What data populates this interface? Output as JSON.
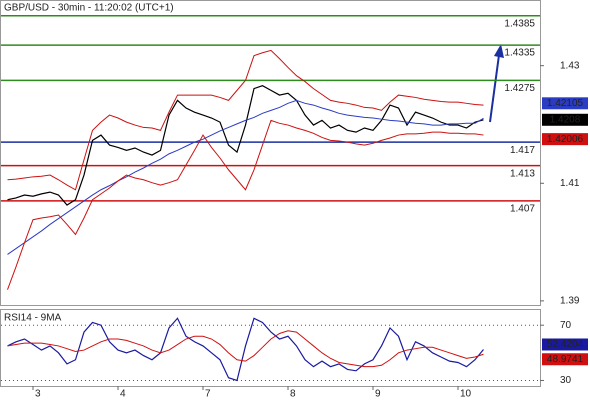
{
  "chart_data": [
    {
      "type": "line",
      "title": "GBP/USD - 30min - 11:20:02 (UTC+1)",
      "categories": [
        null,
        null,
        null,
        "3",
        null,
        null,
        null,
        null,
        null,
        null,
        null,
        null,
        null,
        "4",
        null,
        null,
        null,
        null,
        null,
        null,
        null,
        null,
        null,
        "7",
        null,
        null,
        null,
        null,
        null,
        null,
        null,
        null,
        null,
        "8",
        null,
        null,
        null,
        null,
        null,
        null,
        null,
        null,
        null,
        "9",
        null,
        null,
        null,
        null,
        null,
        null,
        null,
        null,
        null,
        "10",
        null,
        null,
        null
      ],
      "series": [
        {
          "color": "#000000",
          "values": [
            1.4072,
            1.4075,
            1.408,
            1.4078,
            1.4082,
            1.4085,
            1.408,
            1.4063,
            1.4072,
            1.4114,
            1.4173,
            1.4182,
            1.4165,
            1.4161,
            1.4156,
            1.416,
            1.4153,
            1.4148,
            1.4156,
            1.4216,
            1.4241,
            1.4228,
            1.4221,
            1.4216,
            1.4211,
            1.4204,
            1.4165,
            1.4153,
            1.4199,
            1.4261,
            1.4266,
            1.4258,
            1.425,
            1.4253,
            1.4241,
            1.4216,
            1.4199,
            1.4207,
            1.4194,
            1.4199,
            1.419,
            1.4187,
            1.4194,
            1.419,
            1.4207,
            1.4233,
            1.4228,
            1.4199,
            1.4221,
            1.4216,
            1.4211,
            1.4204,
            1.4199,
            1.4199,
            1.4194,
            1.4204,
            1.4208
          ]
        },
        {
          "color": "#2b3cc4",
          "values": [
            1.3979,
            1.3989,
            1.3999,
            1.4009,
            1.4019,
            1.403,
            1.404,
            1.405,
            1.406,
            1.407,
            1.408,
            1.4089,
            1.4096,
            1.4104,
            1.4111,
            1.4119,
            1.4126,
            1.4134,
            1.4141,
            1.415,
            1.4156,
            1.4163,
            1.417,
            1.4175,
            1.4182,
            1.4189,
            1.4195,
            1.4201,
            1.4207,
            1.4212,
            1.4219,
            1.4224,
            1.4229,
            1.4236,
            1.4241,
            1.4236,
            1.4233,
            1.4228,
            1.4224,
            1.4219,
            1.4216,
            1.4214,
            1.4212,
            1.4211,
            1.4209,
            1.4207,
            1.4206,
            1.4204,
            1.4202,
            1.4201,
            1.4199,
            1.4199,
            1.4201,
            1.4201,
            1.4202,
            1.4202,
            1.42105
          ]
        },
        {
          "color": "#cc1111",
          "values": [
            1.4106,
            1.4107,
            1.4109,
            1.4111,
            1.4112,
            1.4114,
            1.4106,
            1.4097,
            1.4089,
            1.414,
            1.419,
            1.4204,
            1.4216,
            1.4211,
            1.4204,
            1.4199,
            1.4195,
            1.4194,
            1.419,
            1.4221,
            1.425,
            1.425,
            1.425,
            1.425,
            1.425,
            1.4246,
            1.4241,
            1.4258,
            1.4275,
            1.4317,
            1.4322,
            1.4326,
            1.4312,
            1.4297,
            1.4283,
            1.4273,
            1.4261,
            1.4251,
            1.4241,
            1.4238,
            1.4236,
            1.4233,
            1.4229,
            1.4228,
            1.4224,
            1.4238,
            1.425,
            1.4248,
            1.4246,
            1.4243,
            1.4241,
            1.4239,
            1.4238,
            1.4238,
            1.4236,
            1.4234,
            1.4233
          ]
        },
        {
          "color": "#cc1111",
          "values": [
            1.3919,
            1.3958,
            1.3999,
            1.4038,
            1.4041,
            1.4043,
            1.4046,
            1.403,
            1.4013,
            1.4041,
            1.4072,
            1.4082,
            1.4092,
            1.4104,
            1.4114,
            1.4109,
            1.4106,
            1.4101,
            1.4097,
            1.4101,
            1.4106,
            1.4131,
            1.4156,
            1.4182,
            1.4161,
            1.4143,
            1.4123,
            1.4106,
            1.4089,
            1.4123,
            1.4165,
            1.4207,
            1.4202,
            1.4199,
            1.4194,
            1.419,
            1.4185,
            1.4178,
            1.4173,
            1.4172,
            1.417,
            1.4167,
            1.4165,
            1.4168,
            1.4173,
            1.4177,
            1.4182,
            1.4184,
            1.4184,
            1.4185,
            1.4187,
            1.4187,
            1.4185,
            1.4185,
            1.4184,
            1.4184,
            1.4182
          ]
        }
      ],
      "ylim": [
        1.3893,
        1.441
      ],
      "yticks": [
        1.39,
        1.41,
        1.43
      ],
      "levels": [
        {
          "value": 1.4385,
          "color": "#2e8b1e"
        },
        {
          "value": 1.4335,
          "color": "#2e8b1e"
        },
        {
          "value": 1.4275,
          "color": "#2e8b1e"
        },
        {
          "value": 1.417,
          "color": "#1a2fa0"
        },
        {
          "value": 1.413,
          "color": "#d01010"
        },
        {
          "value": 1.407,
          "color": "#d01010"
        }
      ],
      "marker_labels": [
        {
          "value": 1.42006,
          "color": "#d01010"
        }
      ]
    },
    {
      "type": "line",
      "title": "RSI14 - 9MA",
      "series": [
        {
          "color": "#1a1aa0",
          "values": [
            55,
            58,
            60,
            56,
            52,
            55,
            50,
            42,
            45,
            65,
            72,
            70,
            58,
            52,
            50,
            52,
            48,
            45,
            50,
            68,
            75,
            62,
            58,
            55,
            50,
            45,
            32,
            30,
            55,
            75,
            72,
            65,
            60,
            62,
            55,
            45,
            40,
            44,
            40,
            42,
            38,
            37,
            42,
            45,
            55,
            68,
            62,
            45,
            58,
            55,
            50,
            47,
            44,
            43,
            40,
            45,
            52.4204
          ]
        },
        {
          "color": "#d01010",
          "values": [
            55,
            56,
            57,
            57,
            57,
            56,
            55,
            53,
            51,
            52,
            55,
            58,
            60,
            60,
            59,
            57,
            55,
            52,
            50,
            52,
            56,
            60,
            62,
            62,
            60,
            56,
            50,
            45,
            44,
            48,
            54,
            60,
            64,
            66,
            65,
            60,
            55,
            50,
            46,
            43,
            42,
            41,
            40,
            40,
            41,
            45,
            50,
            52,
            53,
            54,
            54,
            52,
            50,
            48,
            46,
            47,
            48.9741
          ]
        }
      ],
      "ylim": [
        26,
        81
      ],
      "yticks": [
        70,
        30
      ],
      "grid": true
    }
  ]
}
